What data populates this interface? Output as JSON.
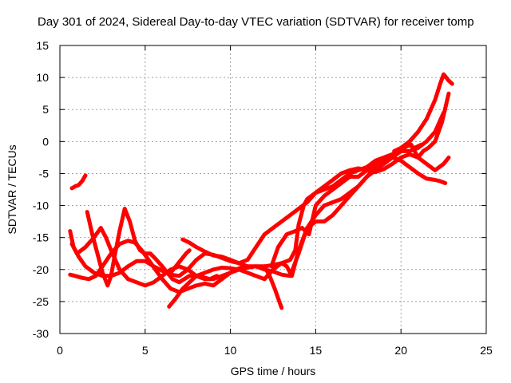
{
  "chart_data": {
    "type": "line",
    "title": "Day 301 of 2024, Sidereal Day-to-day VTEC variation (SDTVAR) for receiver tomp",
    "xlabel": "GPS time / hours",
    "ylabel": "SDTVAR / TECUs",
    "xlim": [
      0,
      25
    ],
    "ylim": [
      -30,
      15
    ],
    "xticks": [
      0,
      5,
      10,
      15,
      20,
      25
    ],
    "yticks": [
      -30,
      -25,
      -20,
      -15,
      -10,
      -5,
      0,
      5,
      10,
      15
    ],
    "grid": true,
    "series_color": "#ff0000",
    "series": [
      {
        "x": [
          0.7,
          0.9,
          1.1,
          1.3,
          1.5
        ],
        "y": [
          -7.3,
          -7.0,
          -6.8,
          -6.2,
          -5.3
        ]
      },
      {
        "x": [
          0.6,
          0.8,
          1.1,
          1.5,
          2.0,
          2.5,
          3.0,
          3.5,
          4.0,
          4.5,
          5.0,
          5.5,
          6.0,
          6.5,
          7.0,
          7.5,
          8.0,
          8.5,
          9.0,
          9.5,
          10.0,
          10.5,
          11.0,
          11.5,
          12.0,
          12.5,
          13.0,
          13.5,
          14.0,
          14.5,
          15.0,
          15.5,
          16.0,
          16.5,
          17.0,
          17.5,
          18.0,
          18.5,
          19.0,
          19.5,
          20.0,
          20.5,
          21.0,
          21.5,
          22.0,
          22.5,
          22.8
        ],
        "y": [
          -14.0,
          -16.5,
          -18.0,
          -19.5,
          -20.5,
          -21.0,
          -21.0,
          -20.5,
          -19.5,
          -18.7,
          -18.7,
          -19.5,
          -20.2,
          -20.8,
          -21.0,
          -20.0,
          -18.5,
          -17.5,
          -17.7,
          -18.2,
          -18.7,
          -19.0,
          -18.5,
          -16.5,
          -14.5,
          -13.5,
          -12.5,
          -11.5,
          -10.5,
          -9.5,
          -8.0,
          -7.0,
          -6.0,
          -5.0,
          -4.5,
          -4.2,
          -4.5,
          -4.8,
          -4.3,
          -3.5,
          -2.5,
          -2.0,
          -2.5,
          -3.5,
          -4.5,
          -3.5,
          -2.5
        ]
      },
      {
        "x": [
          0.7,
          1.0,
          1.5,
          2.0,
          2.4,
          2.7,
          3.0,
          3.5,
          4.0,
          4.5,
          5.0,
          5.5,
          6.0,
          6.5,
          7.0,
          7.5,
          8.0,
          8.5,
          9.0,
          9.5,
          10.0,
          10.5,
          11.0,
          11.5,
          12.0,
          12.5,
          13.0,
          13.5,
          13.8,
          14.0,
          14.3,
          14.5,
          15.0,
          15.5,
          16.0,
          16.5,
          17.0,
          17.5,
          18.0,
          18.5,
          19.0,
          19.5,
          20.0,
          20.5,
          21.0,
          21.5,
          22.0,
          22.3,
          22.5,
          22.8,
          23.0
        ],
        "y": [
          -16.0,
          -17.5,
          -16.5,
          -15.0,
          -13.5,
          -15.0,
          -17.0,
          -20.0,
          -21.5,
          -22.0,
          -22.5,
          -22.0,
          -21.0,
          -20.0,
          -19.5,
          -20.0,
          -21.0,
          -21.5,
          -21.5,
          -21.0,
          -20.5,
          -20.0,
          -19.7,
          -19.5,
          -19.5,
          -19.3,
          -19.0,
          -18.5,
          -17.0,
          -13.0,
          -10.0,
          -9.0,
          -8.0,
          -7.5,
          -7.0,
          -6.0,
          -5.0,
          -4.5,
          -4.0,
          -3.0,
          -2.5,
          -2.0,
          -1.0,
          0.0,
          1.5,
          3.5,
          6.5,
          9.0,
          10.5,
          9.5,
          9.0
        ]
      },
      {
        "x": [
          0.6,
          0.9,
          1.3,
          1.7,
          2.1,
          2.5,
          3.0,
          3.5,
          4.0,
          4.4,
          4.8,
          5.2,
          5.6,
          6.0,
          6.5,
          7.0,
          7.5,
          8.0,
          8.5,
          9.0,
          9.5,
          10.0,
          10.5,
          11.0,
          11.5,
          12.0,
          12.5,
          13.0,
          13.5,
          14.0,
          14.5,
          15.0,
          15.5,
          16.0,
          16.5,
          17.0,
          17.5,
          18.0,
          18.5,
          19.0,
          19.5,
          20.0,
          20.3,
          20.6,
          21.0,
          21.3,
          21.6,
          22.0,
          22.4,
          22.8
        ],
        "y": [
          -20.8,
          -21.0,
          -21.3,
          -21.5,
          -21.0,
          -19.5,
          -17.5,
          -16.0,
          -15.5,
          -15.8,
          -17.0,
          -18.5,
          -20.0,
          -21.5,
          -23.0,
          -23.5,
          -23.0,
          -22.5,
          -22.2,
          -22.5,
          -21.5,
          -20.5,
          -19.8,
          -19.5,
          -19.5,
          -20.0,
          -20.3,
          -20.8,
          -21.0,
          -17.5,
          -13.5,
          -11.5,
          -10.0,
          -9.5,
          -9.0,
          -8.0,
          -7.0,
          -5.5,
          -4.5,
          -3.5,
          -2.5,
          -1.5,
          -0.8,
          -0.5,
          -2.5,
          -1.5,
          -1.0,
          0.0,
          3.0,
          7.5
        ]
      },
      {
        "x": [
          1.6,
          1.9,
          2.2,
          2.5,
          2.8,
          3.0,
          3.2,
          3.5,
          3.8,
          4.1,
          4.4,
          4.7,
          5.0,
          5.3,
          5.6,
          6.0,
          6.3,
          6.6,
          7.0,
          7.3,
          7.6,
          8.0,
          8.5,
          9.0,
          9.5,
          10.0,
          10.5,
          11.0,
          11.5,
          12.0,
          12.5,
          13.0,
          13.3,
          13.6,
          14.0,
          14.5,
          15.0,
          15.5,
          16.0,
          16.5,
          17.0,
          17.5,
          18.0,
          18.5,
          19.0,
          19.5,
          20.0,
          20.5,
          21.0,
          21.5,
          22.0,
          22.3,
          22.6
        ],
        "y": [
          -11.0,
          -14.5,
          -17.5,
          -20.5,
          -22.5,
          -21.0,
          -18.0,
          -14.0,
          -10.5,
          -12.5,
          -15.5,
          -17.0,
          -17.5,
          -17.5,
          -18.3,
          -19.5,
          -20.5,
          -21.5,
          -22.0,
          -21.5,
          -21.0,
          -21.0,
          -20.5,
          -20.0,
          -19.7,
          -19.8,
          -20.0,
          -20.5,
          -21.0,
          -21.5,
          -20.0,
          -19.0,
          -19.5,
          -21.0,
          -17.0,
          -13.5,
          -12.5,
          -12.5,
          -11.5,
          -10.0,
          -8.5,
          -7.0,
          -5.5,
          -4.0,
          -3.0,
          -2.5,
          -3.0,
          -4.0,
          -5.0,
          -5.8,
          -6.0,
          -6.2,
          -6.5
        ]
      },
      {
        "x": [
          6.4,
          6.8,
          7.2,
          7.6,
          8.0,
          8.4,
          8.8,
          9.2,
          9.5
        ],
        "y": [
          -25.8,
          -24.5,
          -23.0,
          -22.0,
          -21.0,
          -21.2,
          -21.5,
          -21.0,
          -21.5
        ]
      },
      {
        "x": [
          6.5,
          6.8,
          7.1,
          7.4,
          7.6
        ],
        "y": [
          -20.5,
          -19.5,
          -18.5,
          -17.5,
          -17.0
        ]
      },
      {
        "x": [
          7.2,
          7.6,
          8.0,
          8.5,
          9.0,
          9.5,
          10.0,
          10.5,
          11.0
        ],
        "y": [
          -15.3,
          -15.8,
          -16.5,
          -17.2,
          -17.8,
          -18.0,
          -18.5,
          -19.0,
          -19.5
        ]
      },
      {
        "x": [
          12.0,
          12.3,
          12.6,
          12.8,
          13.0
        ],
        "y": [
          -19.5,
          -21.0,
          -23.0,
          -24.5,
          -26.0
        ]
      },
      {
        "x": [
          12.4,
          12.8,
          13.3,
          13.8,
          14.2,
          14.6,
          15.0,
          15.5,
          16.0,
          16.5,
          17.0,
          17.5,
          18.0,
          18.5,
          19.0,
          19.5,
          20.0,
          20.5,
          21.0,
          21.5,
          22.0,
          22.5
        ],
        "y": [
          -19.5,
          -16.5,
          -14.5,
          -14.0,
          -13.5,
          -14.5,
          -10.0,
          -8.5,
          -7.5,
          -6.5,
          -5.5,
          -5.5,
          -4.5,
          -3.5,
          -3.0,
          -2.0,
          -1.5,
          -1.5,
          -1.0,
          0.0,
          1.5,
          4.5
        ]
      },
      {
        "x": [
          19.6,
          20.0,
          20.4,
          20.8,
          21.2
        ],
        "y": [
          -1.5,
          -1.0,
          -0.5,
          -1.0,
          -0.5
        ]
      }
    ]
  }
}
